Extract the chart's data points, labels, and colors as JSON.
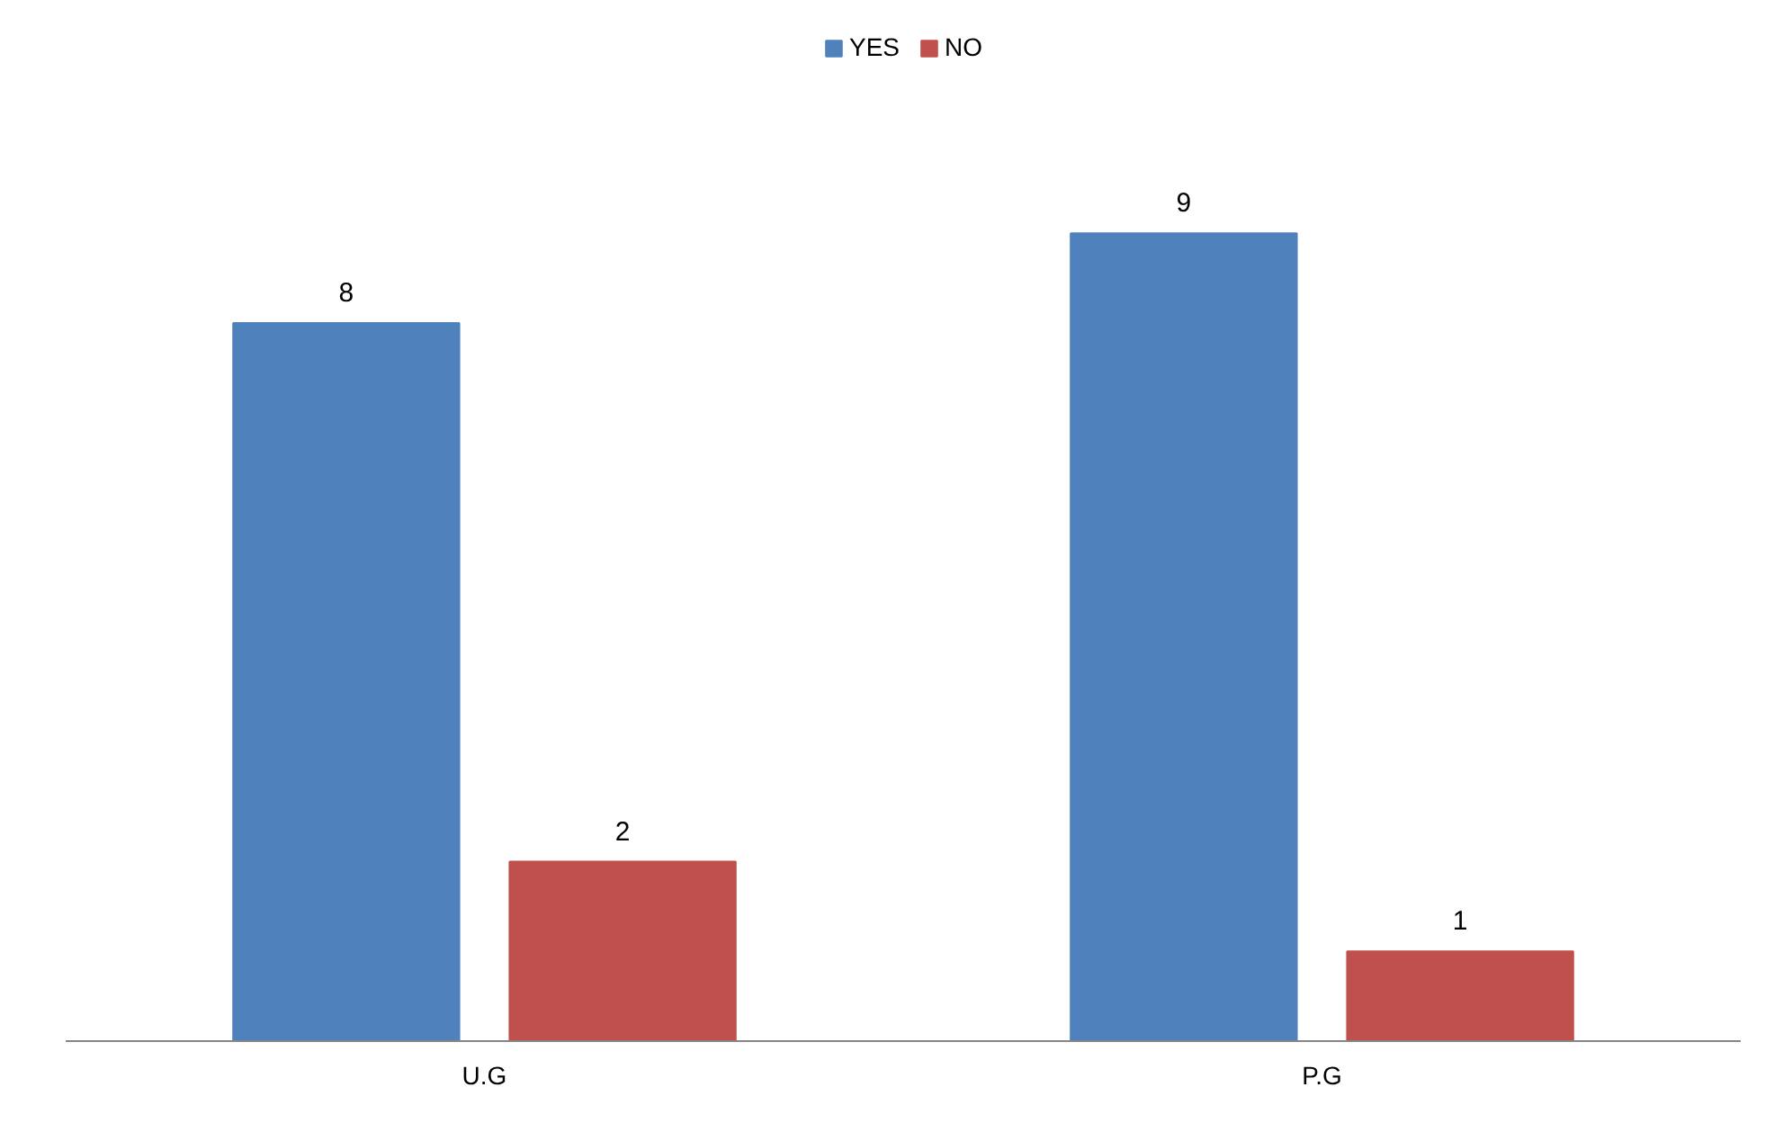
{
  "chart_data": {
    "type": "bar",
    "categories": [
      "U.G",
      "P.G"
    ],
    "series": [
      {
        "name": "YES",
        "color": "#4f81bd",
        "values": [
          8,
          9
        ]
      },
      {
        "name": "NO",
        "color": "#c0504d",
        "values": [
          2,
          1
        ]
      }
    ],
    "data_labels": true,
    "tick_labels": "x",
    "grid": false,
    "legend": "top"
  }
}
